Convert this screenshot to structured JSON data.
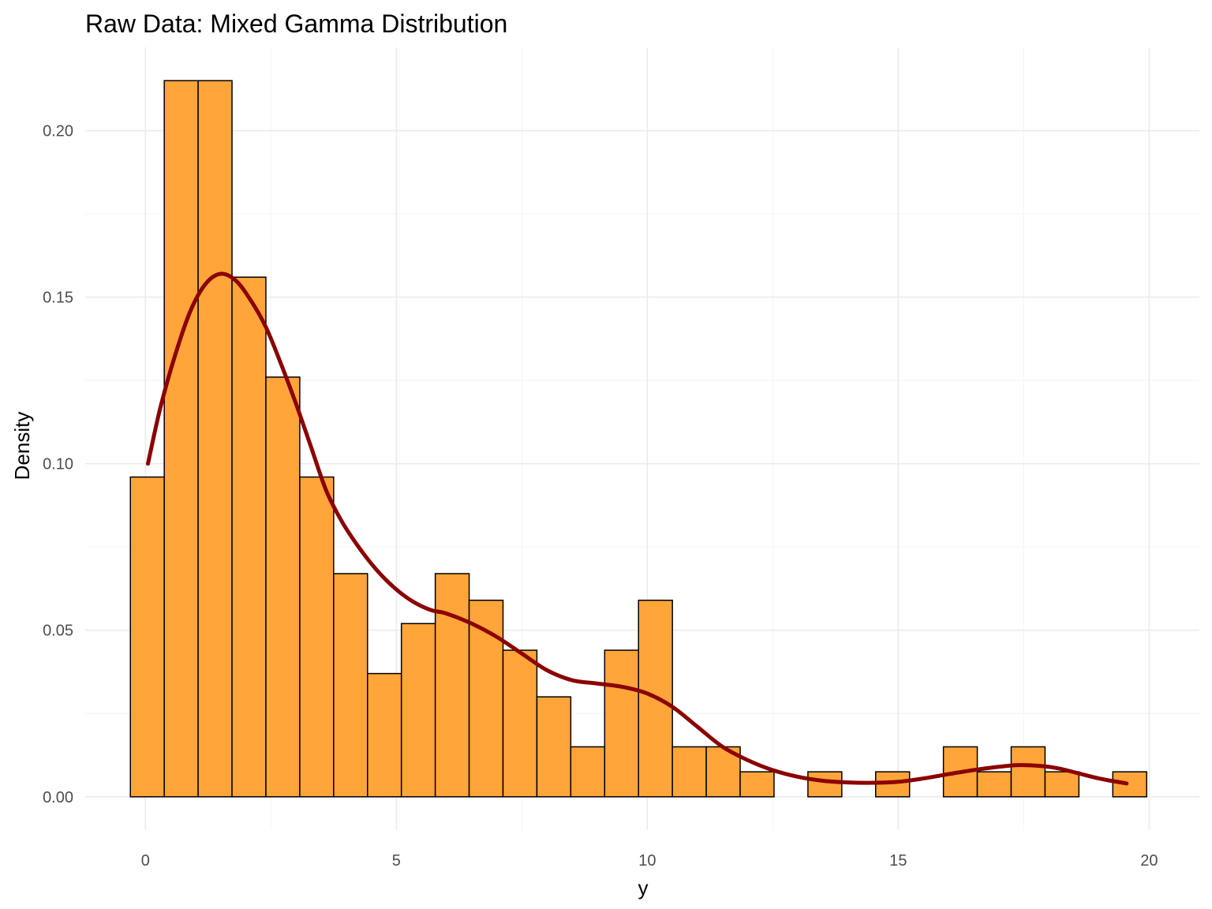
{
  "chart_data": {
    "type": "bar",
    "title": "Raw Data: Mixed Gamma Distribution",
    "xlabel": "y",
    "ylabel": "Density",
    "xlim": [
      -1.2,
      21.0
    ],
    "ylim": [
      -0.01,
      0.225
    ],
    "x_ticks": [
      0,
      5,
      10,
      15,
      20
    ],
    "x_tick_labels": [
      "0",
      "5",
      "10",
      "15",
      "20"
    ],
    "y_ticks": [
      0.0,
      0.05,
      0.1,
      0.15,
      0.2
    ],
    "y_tick_labels": [
      "0.00",
      "0.05",
      "0.10",
      "0.15",
      "0.20"
    ],
    "grid": true,
    "legend": "none",
    "histogram": {
      "bin_width": 0.675,
      "bins_start": [
        -0.3,
        0.375,
        1.05,
        1.725,
        2.4,
        3.075,
        3.75,
        4.425,
        5.1,
        5.775,
        6.45,
        7.125,
        7.8,
        8.475,
        9.15,
        9.825,
        10.5,
        11.175,
        11.85,
        12.525,
        13.2,
        13.875,
        14.55,
        15.225,
        15.9,
        16.575,
        17.25,
        17.925,
        18.6,
        19.275
      ],
      "values": [
        0.096,
        0.215,
        0.215,
        0.156,
        0.126,
        0.096,
        0.067,
        0.037,
        0.052,
        0.067,
        0.059,
        0.044,
        0.03,
        0.015,
        0.044,
        0.059,
        0.015,
        0.015,
        0.0075,
        0.0,
        0.0075,
        0.0,
        0.0075,
        0.0,
        0.015,
        0.0075,
        0.015,
        0.0075,
        0.0,
        0.0075
      ],
      "fill": "#FFA53A",
      "outline": "#000000"
    },
    "series": [
      {
        "type": "line",
        "color": "#8B0000",
        "x": [
          0.05,
          0.3,
          0.6,
          0.9,
          1.2,
          1.5,
          1.8,
          2.1,
          2.4,
          2.7,
          3.0,
          3.3,
          3.6,
          3.9,
          4.2,
          4.5,
          4.8,
          5.1,
          5.4,
          5.7,
          6.0,
          6.5,
          7.0,
          7.5,
          8.0,
          8.5,
          9.0,
          9.5,
          10.0,
          10.5,
          11.0,
          11.5,
          12.0,
          12.5,
          13.0,
          13.5,
          14.0,
          14.5,
          15.0,
          15.5,
          16.0,
          16.5,
          17.0,
          17.4,
          17.8,
          18.2,
          18.6,
          19.0,
          19.55
        ],
        "y": [
          0.1,
          0.117,
          0.133,
          0.146,
          0.154,
          0.157,
          0.155,
          0.149,
          0.141,
          0.13,
          0.118,
          0.105,
          0.092,
          0.083,
          0.076,
          0.07,
          0.065,
          0.061,
          0.058,
          0.056,
          0.055,
          0.052,
          0.048,
          0.043,
          0.038,
          0.035,
          0.034,
          0.033,
          0.031,
          0.027,
          0.021,
          0.015,
          0.011,
          0.008,
          0.006,
          0.0048,
          0.0043,
          0.0042,
          0.0045,
          0.0055,
          0.0068,
          0.008,
          0.009,
          0.0095,
          0.0093,
          0.0085,
          0.007,
          0.0055,
          0.004
        ]
      }
    ]
  }
}
